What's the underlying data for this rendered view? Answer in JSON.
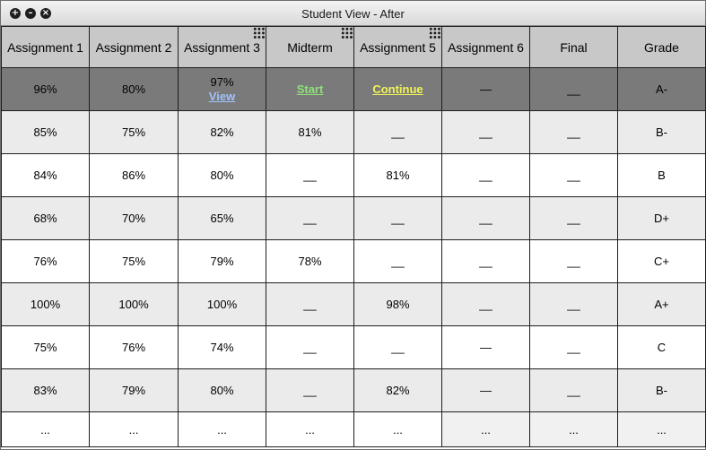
{
  "window": {
    "title": "Student View - After"
  },
  "columns": [
    "Assignment 1",
    "Assignment 2",
    "Assignment 3",
    "Midterm",
    "Assignment 5",
    "Assignment 6",
    "Final",
    "Grade"
  ],
  "current_row": {
    "a1": "96%",
    "a2": "80%",
    "a3": "97%",
    "a3_link": "View",
    "midterm_link": "Start",
    "a5_link": "Continue",
    "a6": "—",
    "final": "__",
    "grade": "A-"
  },
  "rows": [
    [
      "85%",
      "75%",
      "82%",
      "81%",
      "__",
      "__",
      "__",
      "B-"
    ],
    [
      "84%",
      "86%",
      "80%",
      "__",
      "81%",
      "__",
      "__",
      "B"
    ],
    [
      "68%",
      "70%",
      "65%",
      "__",
      "__",
      "__",
      "__",
      "D+"
    ],
    [
      "76%",
      "75%",
      "79%",
      "78%",
      "__",
      "__",
      "__",
      "C+"
    ],
    [
      "100%",
      "100%",
      "100%",
      "__",
      "98%",
      "__",
      "__",
      "A+"
    ],
    [
      "75%",
      "76%",
      "74%",
      "__",
      "__",
      "—",
      "__",
      "C"
    ],
    [
      "83%",
      "79%",
      "80%",
      "__",
      "82%",
      "—",
      "__",
      "B-"
    ],
    [
      "...",
      "...",
      "...",
      "...",
      "...",
      "...",
      "...",
      "..."
    ]
  ]
}
